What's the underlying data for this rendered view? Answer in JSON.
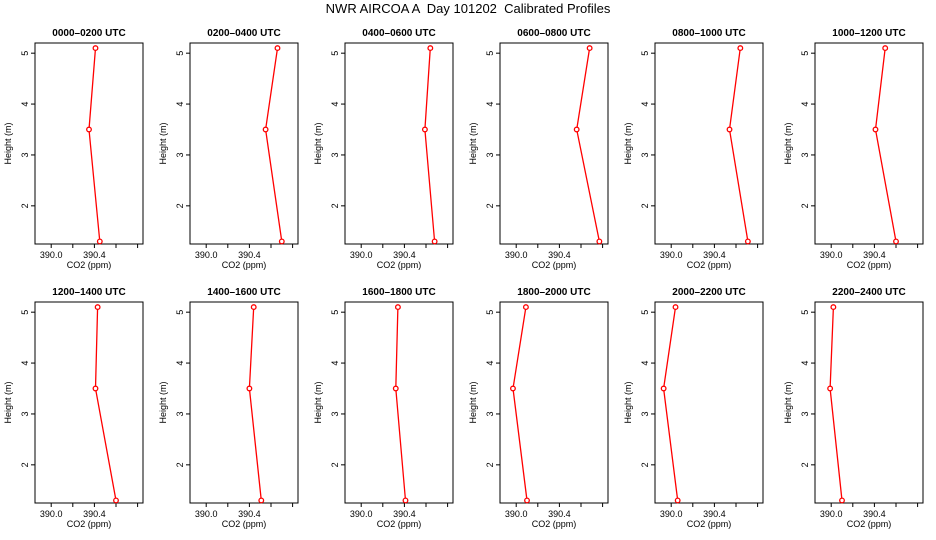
{
  "title": "NWR AIRCOA A  Day 101202  Calibrated Profiles",
  "colors": {
    "line": "#ff0000",
    "marker_edge": "#a00000",
    "axis": "#000000"
  },
  "chart_data": {
    "type": "line",
    "title": "NWR AIRCOA A  Day 101202  Calibrated Profiles",
    "xlabel": "CO2 (ppm)",
    "ylabel": "Height (m)",
    "xlim": [
      389.85,
      390.85
    ],
    "ylim": [
      1.25,
      5.2
    ],
    "xticks": [
      "390.0",
      "390.4"
    ],
    "yticks": [
      "2",
      "3",
      "4",
      "5"
    ],
    "grid": false,
    "panels": [
      {
        "title": "0000–0200 UTC",
        "x": [
          390.41,
          390.35,
          390.45
        ],
        "y": [
          5.1,
          3.5,
          1.3
        ]
      },
      {
        "title": "0200–0400 UTC",
        "x": [
          390.66,
          390.55,
          390.7
        ],
        "y": [
          5.1,
          3.5,
          1.3
        ]
      },
      {
        "title": "0400–0600 UTC",
        "x": [
          390.64,
          390.59,
          390.68
        ],
        "y": [
          5.1,
          3.5,
          1.3
        ]
      },
      {
        "title": "0600–0800 UTC",
        "x": [
          390.68,
          390.56,
          390.77
        ],
        "y": [
          5.1,
          3.5,
          1.3
        ]
      },
      {
        "title": "0800–1000 UTC",
        "x": [
          390.64,
          390.54,
          390.71
        ],
        "y": [
          5.1,
          3.5,
          1.3
        ]
      },
      {
        "title": "1000–1200 UTC",
        "x": [
          390.5,
          390.41,
          390.6
        ],
        "y": [
          5.1,
          3.5,
          1.3
        ]
      },
      {
        "title": "1200–1400 UTC",
        "x": [
          390.43,
          390.41,
          390.6
        ],
        "y": [
          5.1,
          3.5,
          1.3
        ]
      },
      {
        "title": "1400–1600 UTC",
        "x": [
          390.44,
          390.4,
          390.51
        ],
        "y": [
          5.1,
          3.5,
          1.3
        ]
      },
      {
        "title": "1600–1800 UTC",
        "x": [
          390.34,
          390.32,
          390.41
        ],
        "y": [
          5.1,
          3.5,
          1.3
        ]
      },
      {
        "title": "1800–2000 UTC",
        "x": [
          390.09,
          389.97,
          390.1
        ],
        "y": [
          5.1,
          3.5,
          1.3
        ]
      },
      {
        "title": "2000–2200 UTC",
        "x": [
          390.04,
          389.93,
          390.06
        ],
        "y": [
          5.1,
          3.5,
          1.3
        ]
      },
      {
        "title": "2200–2400 UTC",
        "x": [
          390.02,
          389.99,
          390.1
        ],
        "y": [
          5.1,
          3.5,
          1.3
        ]
      }
    ]
  }
}
